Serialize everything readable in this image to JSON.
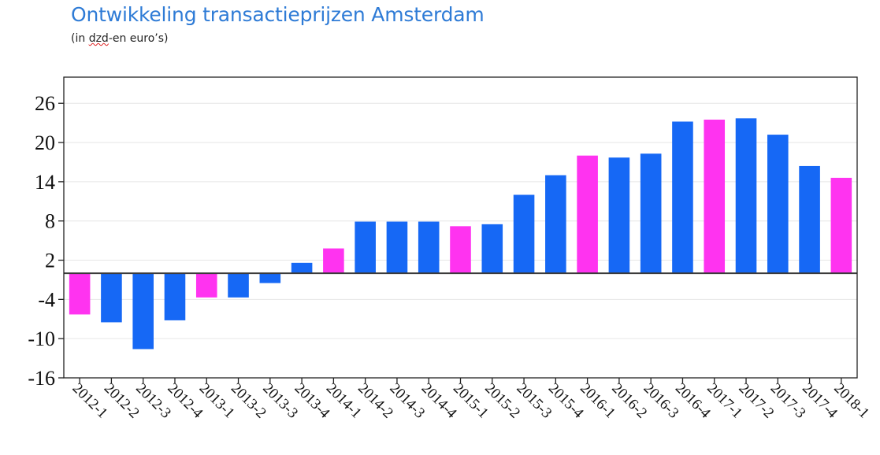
{
  "title": "Ontwikkeling transactieprijzen Amsterdam",
  "subtitle_pre": "(in ",
  "subtitle_mark": "dzd",
  "subtitle_post": "-en euro’s)",
  "colors": {
    "regular": "#1668f5",
    "q1": "#ff33f0",
    "title": "#2e7bd6"
  },
  "chart_data": {
    "type": "bar",
    "title": "Ontwikkeling transactieprijzen Amsterdam",
    "xlabel": "",
    "ylabel": "",
    "ylim": [
      -16,
      30
    ],
    "yticks": [
      "26",
      "20",
      "14",
      "8",
      "2",
      "-4",
      "-10",
      "-16"
    ],
    "ytick_values": [
      26,
      20,
      14,
      8,
      2,
      -4,
      -10,
      -16
    ],
    "grid": true,
    "categories": [
      "2012-1",
      "2012-2",
      "2012-3",
      "2012-4",
      "2013-1",
      "2013-2",
      "2013-3",
      "2013-4",
      "2014-1",
      "2014-2",
      "2014-3",
      "2014-4",
      "2015-1",
      "2015-2",
      "2015-3",
      "2015-4",
      "2016-1",
      "2016-2",
      "2016-3",
      "2016-4",
      "2017-1",
      "2017-2",
      "2017-3",
      "2017-4",
      "2018-1"
    ],
    "values": [
      -6.3,
      -7.5,
      -11.6,
      -7.2,
      -3.7,
      -3.7,
      -1.5,
      1.6,
      3.8,
      7.9,
      7.9,
      7.9,
      7.2,
      7.5,
      12.0,
      15.0,
      18.0,
      17.7,
      18.3,
      23.2,
      23.5,
      23.7,
      21.2,
      16.4,
      14.6
    ],
    "highlight_colors": [
      "q1",
      "regular",
      "regular",
      "regular",
      "q1",
      "regular",
      "regular",
      "regular",
      "q1",
      "regular",
      "regular",
      "regular",
      "q1",
      "regular",
      "regular",
      "regular",
      "q1",
      "regular",
      "regular",
      "regular",
      "q1",
      "regular",
      "regular",
      "regular",
      "q1"
    ]
  }
}
